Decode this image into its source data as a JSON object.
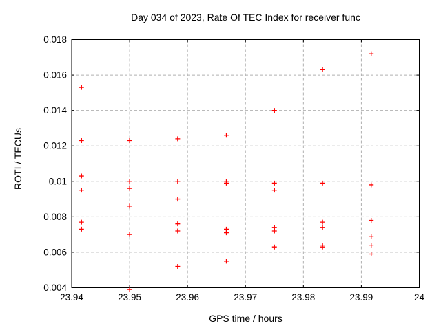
{
  "chart_data": {
    "type": "scatter",
    "title": "Day 034 of 2023, Rate Of TEC Index for receiver func",
    "xlabel": "GPS time / hours",
    "ylabel": "ROTI / TECUs",
    "xlim": [
      23.94,
      24
    ],
    "ylim": [
      0.004,
      0.018
    ],
    "xticks": [
      23.94,
      23.95,
      23.96,
      23.97,
      23.98,
      23.99,
      24
    ],
    "xtick_labels": [
      "23.94",
      "23.95",
      "23.96",
      "23.97",
      "23.98",
      "23.99",
      "24"
    ],
    "yticks": [
      0.004,
      0.006,
      0.008,
      0.01,
      0.012,
      0.014,
      0.016,
      0.018
    ],
    "ytick_labels": [
      "0.004",
      "0.006",
      "0.008",
      "0.01",
      "0.012",
      "0.014",
      "0.016",
      "0.018"
    ],
    "grid": true,
    "legend": false,
    "marker": "plus",
    "marker_color": "#ff0000",
    "series": [
      {
        "name": "ROTI",
        "points": [
          [
            23.9417,
            0.0153
          ],
          [
            23.9417,
            0.0123
          ],
          [
            23.9417,
            0.0103
          ],
          [
            23.9417,
            0.0095
          ],
          [
            23.9417,
            0.0077
          ],
          [
            23.9417,
            0.0073
          ],
          [
            23.95,
            0.0123
          ],
          [
            23.95,
            0.01
          ],
          [
            23.95,
            0.0096
          ],
          [
            23.95,
            0.0086
          ],
          [
            23.95,
            0.007
          ],
          [
            23.95,
            0.0039
          ],
          [
            23.9583,
            0.0124
          ],
          [
            23.9583,
            0.01
          ],
          [
            23.9583,
            0.009
          ],
          [
            23.9583,
            0.0076
          ],
          [
            23.9583,
            0.0072
          ],
          [
            23.9583,
            0.0052
          ],
          [
            23.9667,
            0.0126
          ],
          [
            23.9667,
            0.01
          ],
          [
            23.9667,
            0.0099
          ],
          [
            23.9667,
            0.0073
          ],
          [
            23.9667,
            0.0071
          ],
          [
            23.9667,
            0.0055
          ],
          [
            23.975,
            0.014
          ],
          [
            23.975,
            0.0099
          ],
          [
            23.975,
            0.0095
          ],
          [
            23.975,
            0.0074
          ],
          [
            23.975,
            0.0072
          ],
          [
            23.975,
            0.0063
          ],
          [
            23.9833,
            0.0163
          ],
          [
            23.9833,
            0.0099
          ],
          [
            23.9833,
            0.0077
          ],
          [
            23.9833,
            0.0074
          ],
          [
            23.9833,
            0.0064
          ],
          [
            23.9833,
            0.0063
          ],
          [
            23.9917,
            0.0172
          ],
          [
            23.9917,
            0.0098
          ],
          [
            23.9917,
            0.0078
          ],
          [
            23.9917,
            0.0069
          ],
          [
            23.9917,
            0.0064
          ],
          [
            23.9917,
            0.0059
          ]
        ]
      }
    ]
  },
  "colors": {
    "background": "#ffffff",
    "frame": "#000000",
    "grid": "#b0b0b0",
    "marker": "#ff0000",
    "text": "#000000"
  }
}
